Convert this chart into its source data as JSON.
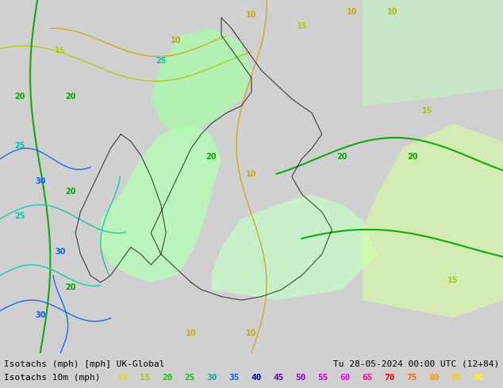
{
  "title_left": "Isotachs (mph) [mph] UK-Global",
  "title_right": "Tu 28-05-2024 00:00 UTC (12+84)",
  "legend_label": "Isotachs 10m (mph)",
  "legend_values": [
    10,
    15,
    20,
    25,
    30,
    35,
    40,
    45,
    50,
    55,
    60,
    65,
    70,
    75,
    80,
    85,
    90
  ],
  "legend_colors": [
    "#ffff00",
    "#c8ff00",
    "#00ff00",
    "#00ff96",
    "#00c8ff",
    "#0064ff",
    "#0000ff",
    "#6400ff",
    "#9600ff",
    "#c800ff",
    "#ff00ff",
    "#ff0096",
    "#ff0000",
    "#ff6400",
    "#ff9600",
    "#ffc800",
    "#ffff00"
  ],
  "bg_color": "#d8d8d8",
  "map_bg": "#e8e8e8",
  "font_color": "#000000",
  "contour_colors": {
    "10": "#ffcc00",
    "15": "#aaee00",
    "20": "#00cc00",
    "25": "#00cccc",
    "30": "#0066ff",
    "35": "#0000cc"
  },
  "fill_colors": {
    "low": "#c8ffc8",
    "medium": "#90ee90",
    "high": "#00ff00"
  }
}
